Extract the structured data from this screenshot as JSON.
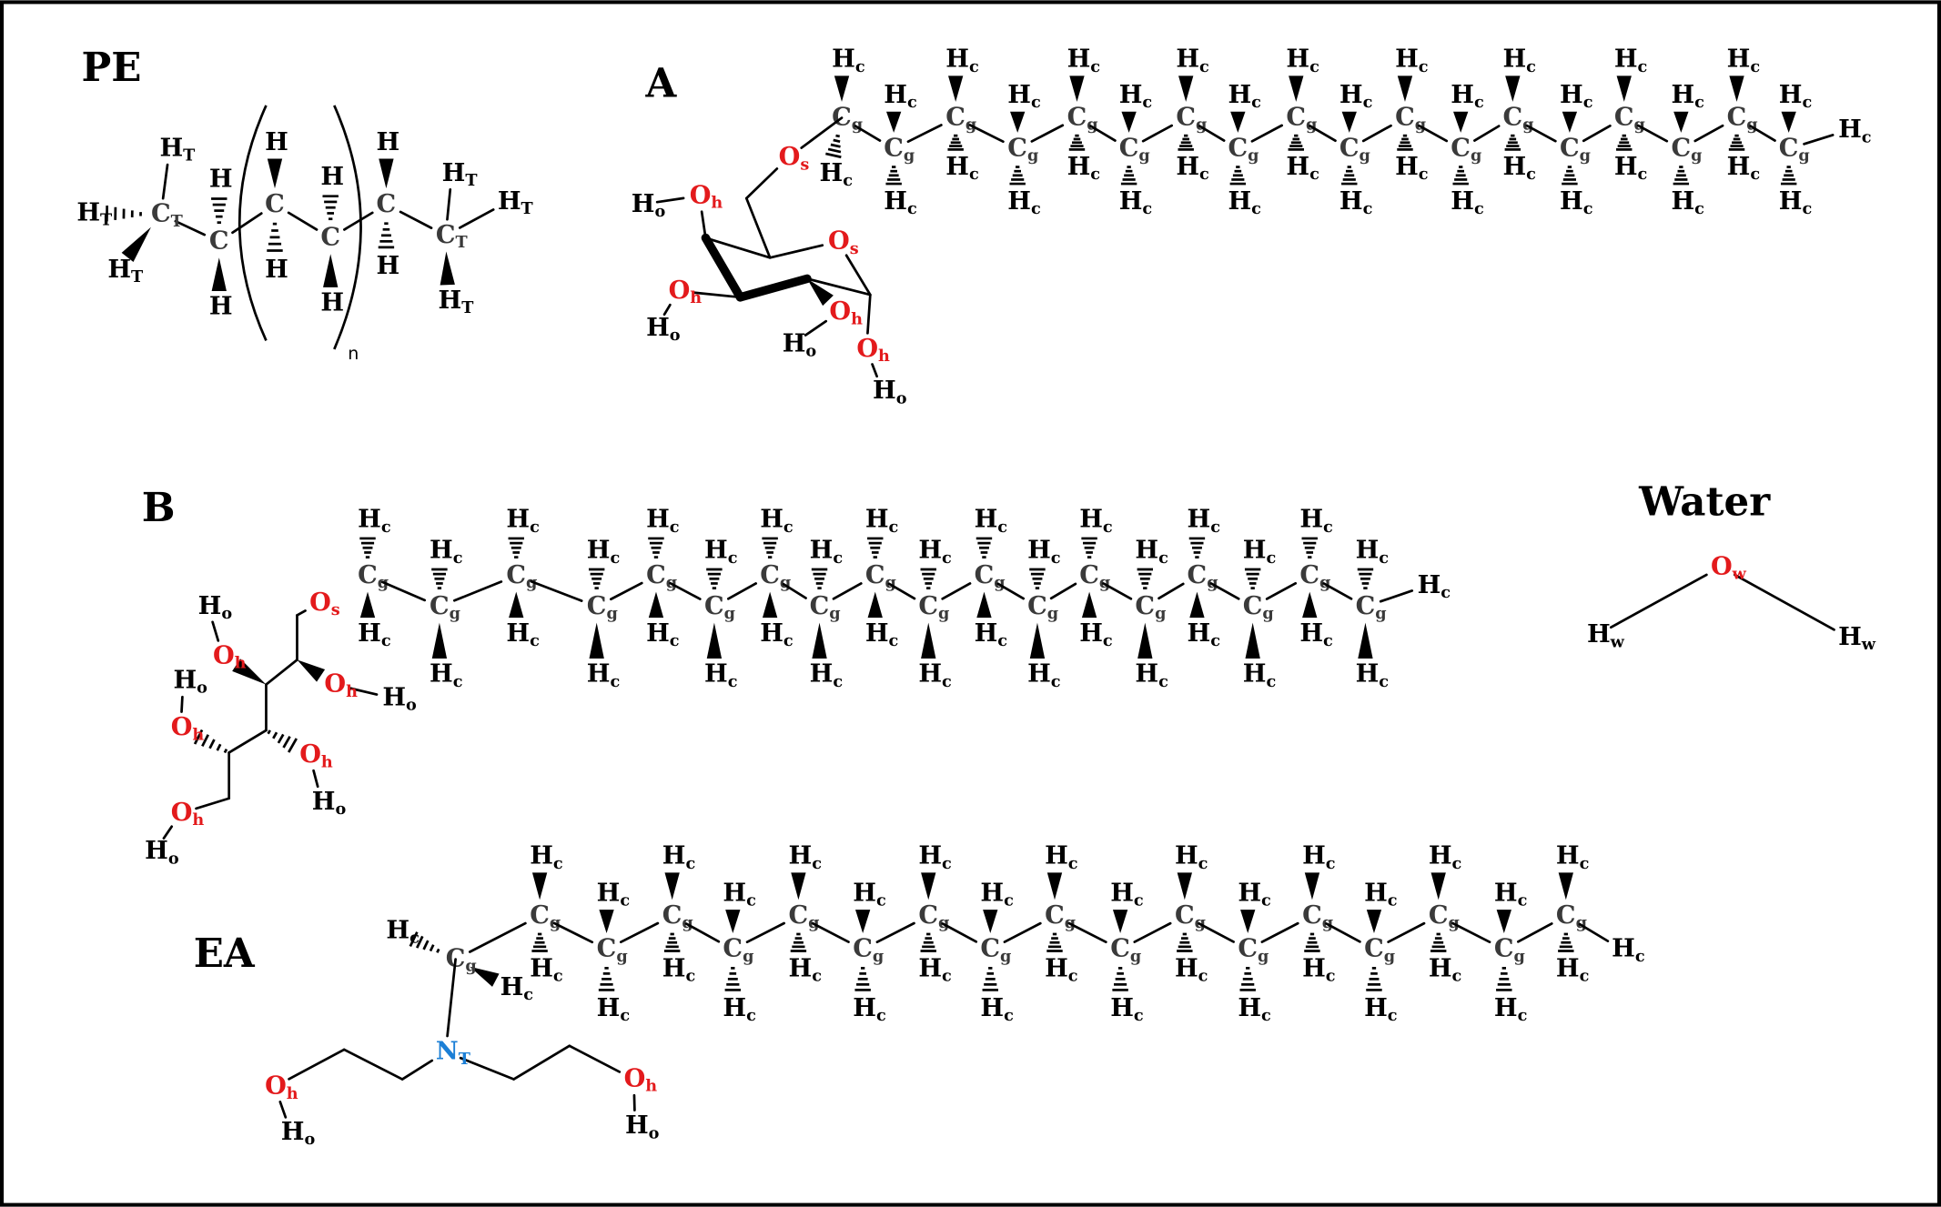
{
  "molecules": [
    {
      "title": "PE",
      "atoms": [
        [
          "C",
          "T"
        ],
        [
          "C"
        ],
        [
          "C"
        ],
        [
          "C"
        ],
        [
          "C"
        ],
        [
          "C",
          "T"
        ],
        [
          "H",
          "T"
        ],
        [
          "H",
          "T"
        ],
        [
          "H",
          "T"
        ],
        [
          "H"
        ],
        [
          "H"
        ],
        [
          "H"
        ],
        [
          "H"
        ],
        [
          "H"
        ],
        [
          "H"
        ],
        [
          "H"
        ],
        [
          "H"
        ],
        [
          "H",
          "T"
        ],
        [
          "H",
          "T"
        ],
        [
          "H",
          "T"
        ]
      ],
      "repeat_label": "n"
    },
    {
      "title": "A",
      "chain": [
        [
          "C",
          "g"
        ],
        [
          "C",
          "g"
        ],
        [
          "C",
          "g"
        ],
        [
          "C",
          "g"
        ],
        [
          "C",
          "g"
        ],
        [
          "C",
          "g"
        ],
        [
          "C",
          "g"
        ],
        [
          "C",
          "g"
        ],
        [
          "C",
          "g"
        ],
        [
          "C",
          "g"
        ],
        [
          "C",
          "g"
        ],
        [
          "C",
          "g"
        ],
        [
          "C",
          "g"
        ],
        [
          "C",
          "g"
        ],
        [
          "C",
          "g"
        ],
        [
          "C",
          "g"
        ],
        [
          "C",
          "g"
        ],
        [
          "C",
          "g"
        ]
      ],
      "chain_h": [
        [
          [
            "H",
            "c"
          ],
          [
            "H",
            "c"
          ]
        ],
        [
          [
            "H",
            "c"
          ],
          [
            "H",
            "c"
          ]
        ],
        [
          [
            "H",
            "c"
          ],
          [
            "H",
            "c"
          ]
        ],
        [
          [
            "H",
            "c"
          ],
          [
            "H",
            "c"
          ]
        ],
        [
          [
            "H",
            "c"
          ],
          [
            "H",
            "c"
          ]
        ],
        [
          [
            "H",
            "c"
          ],
          [
            "H",
            "c"
          ]
        ],
        [
          [
            "H",
            "c"
          ],
          [
            "H",
            "c"
          ]
        ],
        [
          [
            "H",
            "c"
          ],
          [
            "H",
            "c"
          ]
        ],
        [
          [
            "H",
            "c"
          ],
          [
            "H",
            "c"
          ]
        ],
        [
          [
            "H",
            "c"
          ],
          [
            "H",
            "c"
          ]
        ],
        [
          [
            "H",
            "c"
          ],
          [
            "H",
            "c"
          ]
        ],
        [
          [
            "H",
            "c"
          ],
          [
            "H",
            "c"
          ]
        ],
        [
          [
            "H",
            "c"
          ],
          [
            "H",
            "c"
          ]
        ],
        [
          [
            "H",
            "c"
          ],
          [
            "H",
            "c"
          ]
        ],
        [
          [
            "H",
            "c"
          ],
          [
            "H",
            "c"
          ]
        ],
        [
          [
            "H",
            "c"
          ],
          [
            "H",
            "c"
          ]
        ],
        [
          [
            "H",
            "c"
          ],
          [
            "H",
            "c"
          ]
        ],
        [
          [
            "H",
            "c"
          ],
          [
            "H",
            "c"
          ]
        ]
      ],
      "terminal_h": [
        "H",
        "c"
      ],
      "atoms": [
        [
          "O",
          "s"
        ],
        [
          "O",
          "h"
        ],
        [
          "H",
          "o"
        ],
        [
          "O",
          "s"
        ],
        [
          "O",
          "h"
        ],
        [
          "H",
          "o"
        ],
        [
          "O",
          "h"
        ],
        [
          "H",
          "o"
        ],
        [
          "O",
          "h"
        ],
        [
          "H",
          "o"
        ]
      ]
    },
    {
      "title": "B",
      "chain": [
        [
          "C",
          "g"
        ],
        [
          "C",
          "g"
        ],
        [
          "C",
          "g"
        ],
        [
          "C",
          "g"
        ],
        [
          "C",
          "g"
        ],
        [
          "C",
          "g"
        ],
        [
          "C",
          "g"
        ],
        [
          "C",
          "g"
        ],
        [
          "C",
          "g"
        ],
        [
          "C",
          "g"
        ],
        [
          "C",
          "g"
        ],
        [
          "C",
          "g"
        ],
        [
          "C",
          "g"
        ],
        [
          "C",
          "g"
        ],
        [
          "C",
          "g"
        ],
        [
          "C",
          "g"
        ],
        [
          "C",
          "g"
        ],
        [
          "C",
          "g"
        ]
      ],
      "chain_h": [
        [
          [
            "H",
            "c"
          ],
          [
            "H",
            "c"
          ]
        ],
        [
          [
            "H",
            "c"
          ],
          [
            "H",
            "c"
          ]
        ],
        [
          [
            "H",
            "c"
          ],
          [
            "H",
            "c"
          ]
        ],
        [
          [
            "H",
            "c"
          ],
          [
            "H",
            "c"
          ]
        ],
        [
          [
            "H",
            "c"
          ],
          [
            "H",
            "c"
          ]
        ],
        [
          [
            "H",
            "c"
          ],
          [
            "H",
            "c"
          ]
        ],
        [
          [
            "H",
            "c"
          ],
          [
            "H",
            "c"
          ]
        ],
        [
          [
            "H",
            "c"
          ],
          [
            "H",
            "c"
          ]
        ],
        [
          [
            "H",
            "c"
          ],
          [
            "H",
            "c"
          ]
        ],
        [
          [
            "H",
            "c"
          ],
          [
            "H",
            "c"
          ]
        ],
        [
          [
            "H",
            "c"
          ],
          [
            "H",
            "c"
          ]
        ],
        [
          [
            "H",
            "c"
          ],
          [
            "H",
            "c"
          ]
        ],
        [
          [
            "H",
            "c"
          ],
          [
            "H",
            "c"
          ]
        ],
        [
          [
            "H",
            "c"
          ],
          [
            "H",
            "c"
          ]
        ],
        [
          [
            "H",
            "c"
          ],
          [
            "H",
            "c"
          ]
        ],
        [
          [
            "H",
            "c"
          ],
          [
            "H",
            "c"
          ]
        ],
        [
          [
            "H",
            "c"
          ],
          [
            "H",
            "c"
          ]
        ],
        [
          [
            "H",
            "c"
          ],
          [
            "H",
            "c"
          ]
        ]
      ],
      "terminal_h": [
        "H",
        "c"
      ],
      "atoms": [
        [
          "O",
          "s"
        ],
        [
          "O",
          "h"
        ],
        [
          "H",
          "o"
        ],
        [
          "O",
          "h"
        ],
        [
          "H",
          "o"
        ],
        [
          "H",
          "o"
        ],
        [
          "O",
          "h"
        ],
        [
          "O",
          "h"
        ],
        [
          "H",
          "o"
        ],
        [
          "O",
          "h"
        ],
        [
          "H",
          "o"
        ]
      ]
    },
    {
      "title": "Water",
      "atoms": [
        [
          "O",
          "w"
        ],
        [
          "H",
          "w"
        ],
        [
          "H",
          "w"
        ]
      ]
    },
    {
      "title": "EA",
      "chain": [
        [
          "C",
          "g"
        ],
        [
          "C",
          "g"
        ],
        [
          "C",
          "g"
        ],
        [
          "C",
          "g"
        ],
        [
          "C",
          "g"
        ],
        [
          "C",
          "g"
        ],
        [
          "C",
          "g"
        ],
        [
          "C",
          "g"
        ],
        [
          "C",
          "g"
        ],
        [
          "C",
          "g"
        ],
        [
          "C",
          "g"
        ],
        [
          "C",
          "g"
        ],
        [
          "C",
          "g"
        ],
        [
          "C",
          "g"
        ],
        [
          "C",
          "g"
        ],
        [
          "C",
          "g"
        ],
        [
          "C",
          "g"
        ],
        [
          "C",
          "g"
        ]
      ],
      "chain_h": [
        [
          [
            "H",
            "c"
          ],
          [
            "H",
            "c"
          ]
        ],
        [
          [
            "H",
            "c"
          ],
          [
            "H",
            "c"
          ]
        ],
        [
          [
            "H",
            "c"
          ],
          [
            "H",
            "c"
          ]
        ],
        [
          [
            "H",
            "c"
          ],
          [
            "H",
            "c"
          ]
        ],
        [
          [
            "H",
            "c"
          ],
          [
            "H",
            "c"
          ]
        ],
        [
          [
            "H",
            "c"
          ],
          [
            "H",
            "c"
          ]
        ],
        [
          [
            "H",
            "c"
          ],
          [
            "H",
            "c"
          ]
        ],
        [
          [
            "H",
            "c"
          ],
          [
            "H",
            "c"
          ]
        ],
        [
          [
            "H",
            "c"
          ],
          [
            "H",
            "c"
          ]
        ],
        [
          [
            "H",
            "c"
          ],
          [
            "H",
            "c"
          ]
        ],
        [
          [
            "H",
            "c"
          ],
          [
            "H",
            "c"
          ]
        ],
        [
          [
            "H",
            "c"
          ],
          [
            "H",
            "c"
          ]
        ],
        [
          [
            "H",
            "c"
          ],
          [
            "H",
            "c"
          ]
        ],
        [
          [
            "H",
            "c"
          ],
          [
            "H",
            "c"
          ]
        ],
        [
          [
            "H",
            "c"
          ],
          [
            "H",
            "c"
          ]
        ],
        [
          [
            "H",
            "c"
          ],
          [
            "H",
            "c"
          ]
        ],
        [
          [
            "H",
            "c"
          ],
          [
            "H",
            "c"
          ]
        ],
        [
          [
            "H",
            "c"
          ],
          [
            "H",
            "c"
          ]
        ]
      ],
      "terminal_h": [
        "H",
        "c"
      ],
      "atoms": [
        [
          "N",
          "T"
        ],
        [
          "O",
          "h"
        ],
        [
          "H",
          "o"
        ],
        [
          "O",
          "h"
        ],
        [
          "H",
          "o"
        ]
      ]
    }
  ]
}
